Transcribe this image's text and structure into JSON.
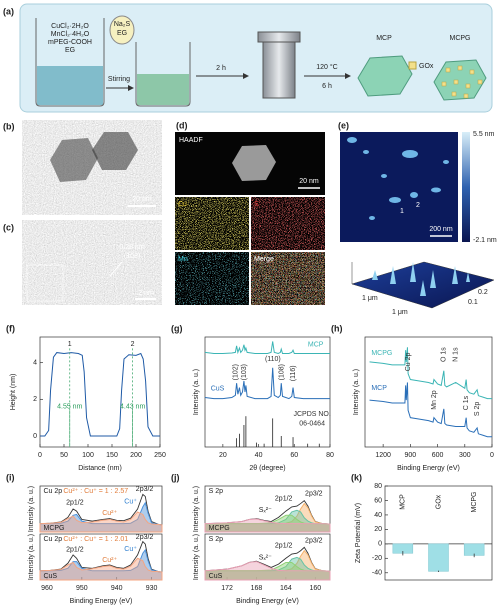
{
  "panels": {
    "a": {
      "label": "(a)",
      "reagents": [
        "CuCl₂·2H₂O",
        "MnCl₂·4H₂O",
        "mPEG-COOH",
        "EG"
      ],
      "additive": [
        "Na₂S",
        "EG"
      ],
      "stirring": "Stirring",
      "step1": "2 h",
      "temp": "120 °C",
      "time": "6 h",
      "mcp": "MCP",
      "gox": "GOx",
      "mcpg": "MCPG"
    },
    "b": {
      "label": "(b)",
      "scale": "20 nm"
    },
    "c": {
      "label": "(c)",
      "spacing": "0.28 nm",
      "plane": "(103)",
      "scale": "2 nm"
    },
    "d": {
      "label": "(d)",
      "haadf": "HAADF",
      "scale": "20 nm",
      "maps": [
        "Cu",
        "S",
        "Mn",
        "Merge"
      ]
    },
    "e": {
      "label": "(e)",
      "max": "5.5 nm",
      "min": "-2.1 nm",
      "points": [
        "1",
        "2"
      ],
      "scale": "200 nm",
      "axis": [
        "1 μm",
        "1 μm",
        "0.2",
        "0.1"
      ]
    }
  },
  "chart_data": [
    {
      "panel": "(f)",
      "type": "line",
      "xlabel": "Distance  (nm)",
      "ylabel": "Height (nm)",
      "xlim": [
        0,
        250
      ],
      "ylim": [
        -0.6,
        5.4
      ],
      "xticks": [
        0,
        50,
        100,
        150,
        200,
        250
      ],
      "yticks": [
        0,
        2,
        4
      ],
      "x": [
        0,
        10,
        18,
        22,
        28,
        35,
        50,
        65,
        80,
        88,
        92,
        97,
        105,
        120,
        140,
        160,
        166,
        170,
        175,
        185,
        200,
        210,
        215,
        220,
        225,
        235,
        250
      ],
      "series": [
        {
          "color": "#1f5aa6",
          "values": [
            0,
            0,
            0.3,
            2.5,
            4.3,
            4.55,
            4.5,
            4.55,
            4.5,
            4.4,
            3.5,
            1,
            0,
            0,
            0,
            0,
            0.4,
            2.5,
            4.2,
            4.43,
            4.4,
            4.5,
            4.2,
            3,
            0.5,
            0,
            0
          ]
        }
      ],
      "annotations": [
        "1",
        "2",
        "4.55 nm",
        "4.43 nm"
      ]
    },
    {
      "panel": "(g)",
      "type": "line",
      "xlabel": "2θ (degree)",
      "ylabel": "Intensity (a. u.)",
      "xlim": [
        10,
        80
      ],
      "ylim": [
        0,
        100
      ],
      "xticks": [
        20,
        40,
        60,
        80
      ],
      "x": [
        10,
        15,
        20,
        25,
        27,
        27.7,
        28.4,
        29.3,
        30,
        31,
        31.8,
        32.4,
        32.9,
        33.6,
        38,
        45,
        47,
        47.9,
        48.8,
        51,
        52.2,
        52.7,
        53.4,
        57,
        58.6,
        59.3,
        60,
        65,
        70,
        75,
        80
      ],
      "series": [
        {
          "name": "MCP",
          "color": "#3bb5b5",
          "values": [
            86,
            85,
            85,
            85.5,
            86,
            92,
            86,
            90,
            86,
            88,
            93,
            88,
            90,
            86,
            85,
            85,
            86,
            96,
            86,
            85,
            86,
            89,
            85,
            85,
            86,
            88,
            85,
            85,
            85,
            85,
            85
          ]
        },
        {
          "name": "CuS",
          "color": "#2a6fb8",
          "values": [
            45,
            44,
            44,
            45,
            47,
            58,
            48,
            54,
            47,
            50,
            60,
            50,
            56,
            46,
            44,
            44,
            46,
            72,
            47,
            45,
            47,
            58,
            46,
            44,
            46,
            54,
            45,
            44,
            44,
            44,
            44
          ]
        }
      ],
      "reference": {
        "color": "#222222",
        "x": [
          27.7,
          29.3,
          31.8,
          32.9,
          38.8,
          43.1,
          47.9,
          52.7,
          59.3,
          67.5,
          74
        ],
        "values": [
          8,
          12,
          20,
          28,
          4,
          3,
          26,
          10,
          9,
          3,
          3
        ]
      },
      "annotations": [
        "(102)",
        "(103)",
        "(110)",
        "(108)",
        "(116)",
        "JCPDS NO.",
        "06-0464"
      ]
    },
    {
      "panel": "(h)",
      "type": "line",
      "xlabel": "Binding Energy (eV)",
      "ylabel": "Intensity (a. u.)",
      "xlim": [
        1400,
        0
      ],
      "ylim": [
        30,
        105
      ],
      "xticks": [
        1200,
        900,
        600,
        300,
        0
      ],
      "x": [
        1350,
        1200,
        1100,
        1000,
        960,
        952,
        945,
        932,
        925,
        900,
        800,
        700,
        650,
        640,
        600,
        560,
        531,
        520,
        500,
        400,
        300,
        285,
        275,
        250,
        200,
        164,
        150,
        100,
        50,
        0
      ],
      "series": [
        {
          "name": "MCPG",
          "color": "#3bb5b5",
          "values": [
            88,
            87,
            86,
            86,
            86,
            96,
            88,
            98,
            80,
            76,
            75,
            74,
            73,
            76,
            73,
            72,
            82,
            72,
            71,
            74,
            70,
            76,
            69,
            67,
            66,
            69,
            65,
            64,
            63,
            63
          ]
        },
        {
          "name": "MCP",
          "color": "#2a6fb8",
          "values": [
            62,
            61,
            60,
            60,
            60,
            72,
            62,
            74,
            55,
            50,
            49,
            48,
            47,
            50,
            47,
            46,
            56,
            46,
            45,
            44,
            44,
            50,
            43,
            41,
            40,
            43,
            39,
            38,
            37,
            37
          ]
        }
      ],
      "annotations": [
        "Cu 2p",
        "Mn 2p",
        "O 1s",
        "N 1s",
        "C 1s",
        "S 2p"
      ]
    },
    {
      "panel": "(i)",
      "type": "line",
      "ylabel": "Intensity (a. u.)",
      "xlim": [
        962,
        927
      ],
      "ylim": [
        0,
        110
      ],
      "x": [
        962,
        959,
        956,
        954,
        952.5,
        951.5,
        950,
        947,
        944,
        942,
        940,
        938,
        936,
        934,
        932.5,
        931.8,
        931,
        930,
        928,
        927
      ],
      "series": [
        {
          "color": "#333333",
          "values": [
            20,
            21,
            24,
            35,
            55,
            50,
            30,
            26,
            30,
            32,
            28,
            27,
            33,
            55,
            90,
            85,
            50,
            25,
            18,
            17
          ]
        },
        {
          "color": "#4a90d9",
          "values": [
            20,
            20,
            21,
            26,
            40,
            42,
            26,
            20,
            20,
            20,
            20,
            20,
            21,
            30,
            60,
            70,
            45,
            22,
            18,
            17
          ]
        },
        {
          "color": "#f4a582",
          "values": [
            20,
            21,
            23,
            32,
            38,
            28,
            22,
            24,
            28,
            30,
            26,
            24,
            30,
            48,
            42,
            30,
            22,
            19,
            18,
            17
          ]
        }
      ],
      "annotations": [
        "Cu 2p",
        "Cu²⁺ : Cu⁺ = 1 : 2.57",
        "2p1/2",
        "2p3/2",
        "Cu⁺",
        "Cu²⁺",
        "MCPG"
      ]
    },
    {
      "type": "line",
      "xlabel": "Binding Energy (eV)",
      "ylabel": "Intensity (a. u.)",
      "xlim": [
        962,
        927
      ],
      "ylim": [
        0,
        110
      ],
      "xticks": [
        960,
        950,
        940,
        930
      ],
      "x": [
        962,
        959,
        956,
        954,
        952.5,
        951.5,
        950,
        947,
        944,
        942,
        940,
        938,
        936,
        934,
        932.5,
        931.8,
        931,
        930,
        928,
        927
      ],
      "series": [
        {
          "color": "#333333",
          "values": [
            22,
            23,
            26,
            40,
            60,
            52,
            30,
            28,
            34,
            36,
            30,
            28,
            36,
            60,
            92,
            86,
            52,
            26,
            20,
            19
          ]
        },
        {
          "color": "#4a90d9",
          "values": [
            22,
            22,
            23,
            28,
            44,
            44,
            28,
            22,
            22,
            22,
            22,
            22,
            23,
            32,
            64,
            72,
            46,
            24,
            20,
            19
          ]
        },
        {
          "color": "#f4a582",
          "values": [
            22,
            23,
            25,
            36,
            42,
            30,
            24,
            27,
            32,
            34,
            28,
            26,
            33,
            52,
            46,
            32,
            24,
            21,
            20,
            19
          ]
        }
      ],
      "annotations": [
        "Cu 2p",
        "Cu²⁺ : Cu⁺ = 1 : 2.01",
        "2p1/2",
        "2p3/2",
        "Cu⁺",
        "Cu²⁺",
        "CuS"
      ]
    },
    {
      "panel": "(j)",
      "type": "line",
      "ylabel": "Intensity (a. u.)",
      "xlim": [
        175,
        158
      ],
      "ylim": [
        0,
        110
      ],
      "x": [
        175,
        172,
        170,
        169,
        168,
        167,
        166,
        165,
        164,
        163.2,
        162.5,
        162,
        161.5,
        161,
        160.5,
        160,
        159,
        158
      ],
      "series": [
        {
          "color": "#333333",
          "values": [
            20,
            22,
            25,
            30,
            32,
            28,
            25,
            35,
            50,
            60,
            62,
            68,
            75,
            62,
            40,
            25,
            20,
            19
          ]
        },
        {
          "color": "#f6b26b",
          "values": [
            20,
            20,
            20,
            20,
            20,
            20,
            20,
            20,
            21,
            25,
            38,
            55,
            68,
            58,
            38,
            24,
            20,
            19
          ]
        },
        {
          "color": "#66c2a5",
          "values": [
            20,
            20,
            20,
            20,
            20,
            20,
            20,
            22,
            30,
            48,
            52,
            48,
            34,
            26,
            22,
            20,
            20,
            19
          ]
        },
        {
          "color": "#8fd175",
          "values": [
            20,
            20,
            20,
            20,
            20,
            21,
            22,
            30,
            40,
            40,
            30,
            24,
            21,
            20,
            20,
            20,
            20,
            19
          ]
        },
        {
          "color": "#e8a0b4",
          "values": [
            20,
            22,
            25,
            30,
            31,
            27,
            23,
            21,
            20,
            20,
            20,
            20,
            20,
            20,
            20,
            20,
            20,
            19
          ]
        }
      ],
      "annotations": [
        "S 2p",
        "2p1/2",
        "2p3/2",
        "Sₓ²⁻",
        "MCPG"
      ]
    },
    {
      "type": "line",
      "xlabel": "Binding Energy (eV)",
      "ylabel": "Intensity (a. u.)",
      "xlim": [
        175,
        158
      ],
      "ylim": [
        0,
        110
      ],
      "xticks": [
        172,
        168,
        164,
        160
      ],
      "x": [
        175,
        172,
        170,
        169,
        168,
        167,
        166,
        165,
        164,
        163.2,
        162.5,
        162,
        161.5,
        161,
        160.5,
        160,
        159,
        158
      ],
      "series": [
        {
          "color": "#333333",
          "values": [
            22,
            26,
            34,
            42,
            45,
            38,
            30,
            38,
            52,
            62,
            64,
            70,
            78,
            64,
            42,
            27,
            22,
            21
          ]
        },
        {
          "color": "#f6b26b",
          "values": [
            22,
            22,
            22,
            22,
            22,
            22,
            22,
            22,
            23,
            27,
            40,
            57,
            70,
            60,
            40,
            26,
            22,
            21
          ]
        },
        {
          "color": "#66c2a5",
          "values": [
            22,
            22,
            22,
            22,
            22,
            22,
            22,
            24,
            32,
            50,
            54,
            50,
            36,
            28,
            24,
            22,
            22,
            21
          ]
        },
        {
          "color": "#8fd175",
          "values": [
            22,
            22,
            22,
            22,
            22,
            23,
            24,
            32,
            42,
            42,
            32,
            26,
            23,
            22,
            22,
            22,
            22,
            21
          ]
        },
        {
          "color": "#e8a0b4",
          "values": [
            22,
            26,
            34,
            42,
            44,
            36,
            28,
            23,
            22,
            22,
            22,
            22,
            22,
            22,
            22,
            22,
            22,
            21
          ]
        }
      ],
      "annotations": [
        "S 2p",
        "2p1/2",
        "2p3/2",
        "Sₓ²⁻",
        "CuS"
      ]
    },
    {
      "panel": "(k)",
      "type": "bar",
      "ylabel": "Zeta Potential (mV)",
      "categories": [
        "MCP",
        "GOx",
        "MCPG"
      ],
      "values": [
        -13,
        -38,
        -16
      ],
      "errors": [
        3,
        1,
        2.5
      ],
      "color": "#9fdfe6",
      "ylim": [
        -50,
        80
      ],
      "yticks": [
        -40,
        -20,
        0,
        20,
        40,
        60,
        80
      ]
    }
  ]
}
